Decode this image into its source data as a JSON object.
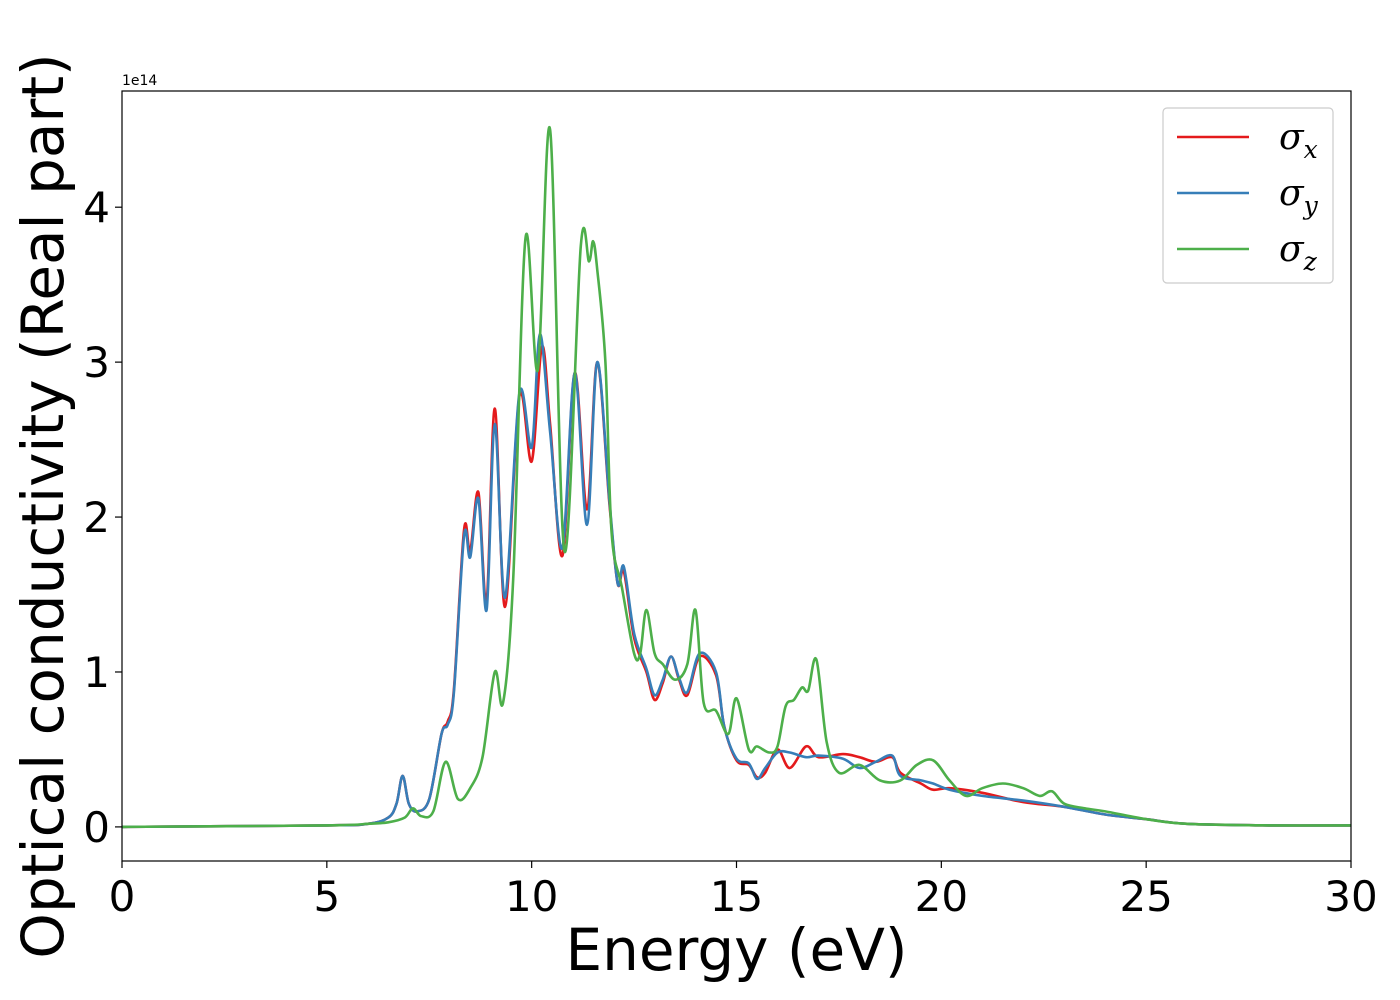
{
  "chart_data": {
    "type": "line",
    "xlabel": "Energy (eV)",
    "ylabel": "Optical conductivity (Real part)",
    "y_offset_text": "1e14",
    "y_scale": 100000000000000.0,
    "xlim": [
      0,
      30
    ],
    "ylim": [
      -0.22,
      4.75
    ],
    "x_ticks": [
      0,
      5,
      10,
      15,
      20,
      25,
      30
    ],
    "y_ticks": [
      0,
      1,
      2,
      3,
      4
    ],
    "grid": false,
    "legend_position": "top-right",
    "series": [
      {
        "name": "σ_x",
        "legend_base": "σ",
        "legend_sub": "x",
        "color": "#e41a1c",
        "x": [
          0,
          5,
          6,
          6.5,
          6.7,
          6.85,
          7.0,
          7.2,
          7.5,
          7.8,
          7.95,
          8.1,
          8.35,
          8.5,
          8.7,
          8.9,
          9.1,
          9.35,
          9.7,
          10.0,
          10.25,
          10.45,
          10.75,
          11.05,
          11.35,
          11.6,
          11.9,
          12.1,
          12.25,
          12.5,
          12.8,
          13.0,
          13.2,
          13.4,
          13.6,
          13.8,
          14.1,
          14.5,
          14.7,
          15.0,
          15.3,
          15.5,
          15.7,
          16.0,
          16.3,
          16.7,
          17.0,
          17.6,
          18.0,
          18.4,
          18.8,
          19.0,
          19.5,
          19.8,
          20.2,
          21.0,
          22.0,
          23.0,
          24.0,
          25.0,
          26.0,
          28.0,
          30.0
        ],
        "y": [
          0,
          0.01,
          0.02,
          0.06,
          0.15,
          0.33,
          0.15,
          0.1,
          0.18,
          0.6,
          0.68,
          0.88,
          1.92,
          1.78,
          2.16,
          1.45,
          2.7,
          1.42,
          2.78,
          2.36,
          3.1,
          2.6,
          1.75,
          2.93,
          2.05,
          3.0,
          2.08,
          1.57,
          1.65,
          1.22,
          1.0,
          0.82,
          0.93,
          1.1,
          0.95,
          0.85,
          1.1,
          0.98,
          0.65,
          0.43,
          0.4,
          0.32,
          0.35,
          0.5,
          0.38,
          0.52,
          0.45,
          0.47,
          0.45,
          0.42,
          0.45,
          0.35,
          0.28,
          0.24,
          0.25,
          0.22,
          0.16,
          0.13,
          0.08,
          0.05,
          0.02,
          0.01,
          0.01
        ]
      },
      {
        "name": "σ_y",
        "legend_base": "σ",
        "legend_sub": "y",
        "color": "#377eb8",
        "x": [
          0,
          5,
          6,
          6.5,
          6.7,
          6.85,
          7.0,
          7.2,
          7.5,
          7.8,
          7.95,
          8.1,
          8.35,
          8.5,
          8.7,
          8.9,
          9.1,
          9.35,
          9.7,
          10.0,
          10.2,
          10.45,
          10.75,
          11.05,
          11.35,
          11.6,
          11.9,
          12.1,
          12.25,
          12.5,
          12.8,
          13.0,
          13.2,
          13.4,
          13.6,
          13.8,
          14.1,
          14.5,
          14.7,
          15.0,
          15.3,
          15.5,
          15.7,
          16.0,
          16.3,
          16.7,
          17.0,
          17.6,
          18.0,
          18.4,
          18.8,
          19.0,
          19.5,
          19.8,
          20.2,
          21.0,
          22.0,
          23.0,
          24.0,
          25.0,
          26.0,
          28.0,
          30.0
        ],
        "y": [
          0,
          0.01,
          0.02,
          0.06,
          0.15,
          0.33,
          0.15,
          0.1,
          0.18,
          0.6,
          0.66,
          0.86,
          1.88,
          1.74,
          2.12,
          1.4,
          2.6,
          1.48,
          2.8,
          2.45,
          3.18,
          2.55,
          1.8,
          2.93,
          1.95,
          3.0,
          2.1,
          1.57,
          1.68,
          1.25,
          1.02,
          0.85,
          0.95,
          1.1,
          0.96,
          0.87,
          1.12,
          1.0,
          0.65,
          0.44,
          0.41,
          0.31,
          0.38,
          0.48,
          0.48,
          0.45,
          0.46,
          0.44,
          0.38,
          0.42,
          0.46,
          0.33,
          0.3,
          0.28,
          0.24,
          0.2,
          0.17,
          0.13,
          0.08,
          0.05,
          0.02,
          0.01,
          0.01
        ]
      },
      {
        "name": "σ_z",
        "legend_base": "σ",
        "legend_sub": "z",
        "color": "#4daf4a",
        "x": [
          0,
          5,
          6,
          6.5,
          6.9,
          7.1,
          7.3,
          7.6,
          7.9,
          8.2,
          8.5,
          8.8,
          9.1,
          9.3,
          9.55,
          9.85,
          10.15,
          10.45,
          10.8,
          11.2,
          11.4,
          11.5,
          11.6,
          11.8,
          11.95,
          12.2,
          12.5,
          12.65,
          12.8,
          13.0,
          13.2,
          13.5,
          13.8,
          14.0,
          14.2,
          14.5,
          14.8,
          15.0,
          15.3,
          15.5,
          15.8,
          16.0,
          16.2,
          16.4,
          16.6,
          16.75,
          16.95,
          17.2,
          17.5,
          18.0,
          18.5,
          19.0,
          19.4,
          19.8,
          20.2,
          20.6,
          21.0,
          21.5,
          22.0,
          22.4,
          22.7,
          23.0,
          23.5,
          24.0,
          25.0,
          26.0,
          28.0,
          30.0
        ],
        "y": [
          0,
          0.01,
          0.02,
          0.03,
          0.06,
          0.12,
          0.07,
          0.1,
          0.42,
          0.18,
          0.25,
          0.45,
          1.0,
          0.8,
          1.6,
          3.8,
          2.95,
          4.5,
          1.78,
          3.75,
          3.65,
          3.78,
          3.6,
          3.0,
          1.9,
          1.55,
          1.12,
          1.12,
          1.4,
          1.12,
          1.05,
          0.95,
          1.05,
          1.4,
          0.8,
          0.75,
          0.6,
          0.83,
          0.5,
          0.52,
          0.48,
          0.52,
          0.78,
          0.82,
          0.9,
          0.88,
          1.08,
          0.55,
          0.35,
          0.4,
          0.3,
          0.3,
          0.4,
          0.43,
          0.3,
          0.2,
          0.25,
          0.28,
          0.25,
          0.2,
          0.23,
          0.15,
          0.12,
          0.1,
          0.05,
          0.02,
          0.01,
          0.01
        ]
      }
    ]
  }
}
